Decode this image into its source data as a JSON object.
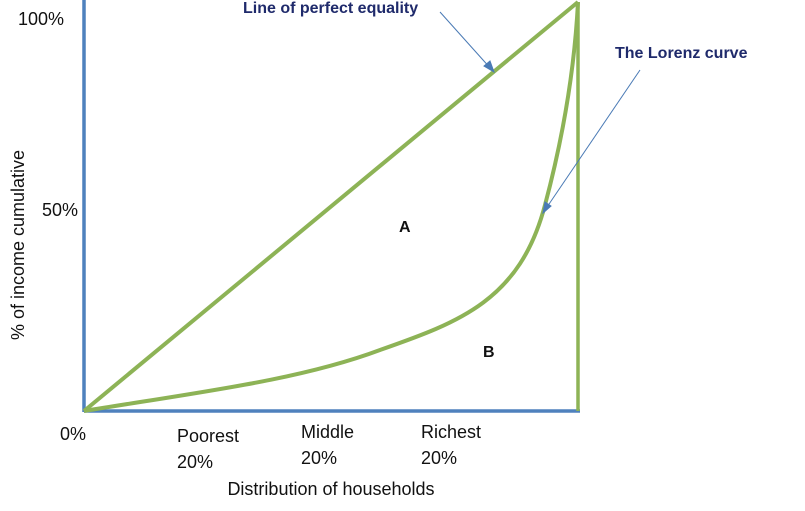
{
  "annotations": {
    "equality_line": "Line of perfect equality",
    "lorenz_curve": "The Lorenz curve"
  },
  "y_axis": {
    "label": "% of income cumulative",
    "ticks": [
      "100%",
      "50%",
      "0%"
    ]
  },
  "x_axis": {
    "label": "Distribution of households",
    "groups": [
      {
        "name": "Poorest",
        "share": "20%"
      },
      {
        "name": "Middle",
        "share": "20%"
      },
      {
        "name": "Richest",
        "share": "20%"
      }
    ]
  },
  "areas": {
    "a": "A",
    "b": "B"
  }
}
